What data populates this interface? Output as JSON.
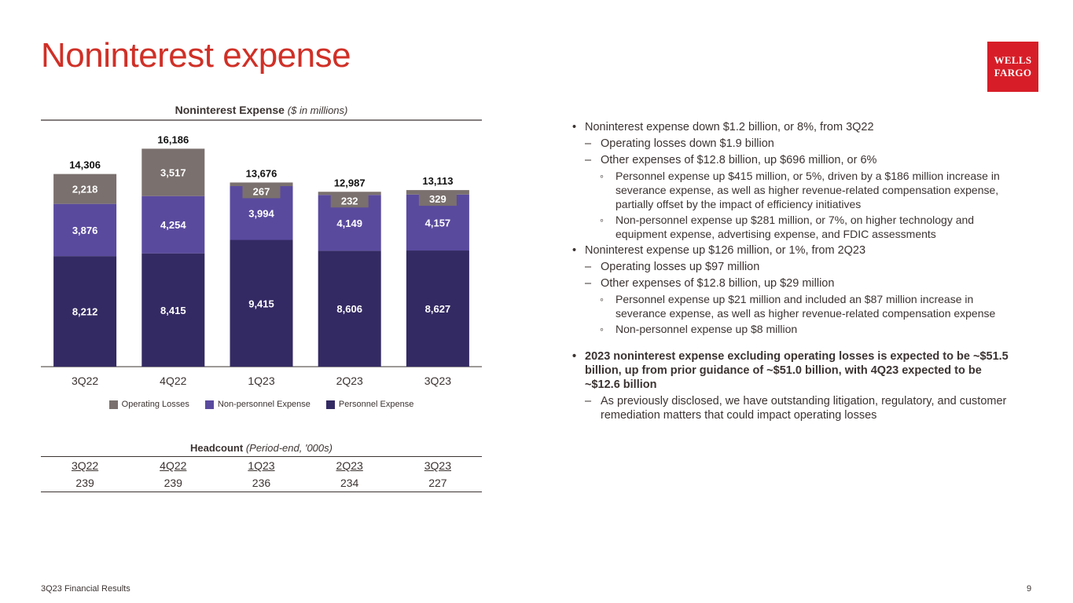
{
  "page": {
    "title": "Noninterest expense",
    "logo_line1": "WELLS",
    "logo_line2": "FARGO",
    "footer": "3Q23 Financial Results",
    "page_number": "9"
  },
  "chart_data": {
    "type": "bar",
    "stacked": true,
    "title": "Noninterest Expense",
    "title_units": "($ in millions)",
    "categories": [
      "3Q22",
      "4Q22",
      "1Q23",
      "2Q23",
      "3Q23"
    ],
    "series": [
      {
        "name": "Personnel Expense",
        "color": "#342a63",
        "values": [
          8212,
          8415,
          9415,
          8606,
          8627
        ],
        "labels": [
          "8,212",
          "8,415",
          "9,415",
          "8,606",
          "8,627"
        ]
      },
      {
        "name": "Non-personnel Expense",
        "color": "#5a4a9e",
        "values": [
          3876,
          4254,
          3994,
          4149,
          4157
        ],
        "labels": [
          "3,876",
          "4,254",
          "3,994",
          "4,149",
          "4,157"
        ]
      },
      {
        "name": "Operating Losses",
        "color": "#7a706e",
        "values": [
          2218,
          3517,
          267,
          232,
          329
        ],
        "labels": [
          "2,218",
          "3,517",
          "267",
          "232",
          "329"
        ]
      }
    ],
    "totals": [
      "14,306",
      "16,186",
      "13,676",
      "12,987",
      "13,113"
    ],
    "legend": [
      "Operating Losses",
      "Non-personnel Expense",
      "Personnel Expense"
    ],
    "ylim": [
      0,
      16500
    ]
  },
  "headcount": {
    "title": "Headcount",
    "subtitle": "(Period-end, '000s)",
    "periods": [
      "3Q22",
      "4Q22",
      "1Q23",
      "2Q23",
      "3Q23"
    ],
    "values": [
      "239",
      "239",
      "236",
      "234",
      "227"
    ]
  },
  "bullets": [
    {
      "level": 1,
      "bold": false,
      "text": "Noninterest expense down $1.2 billion, or 8%, from 3Q22"
    },
    {
      "level": 2,
      "bold": false,
      "text": "Operating losses down $1.9 billion"
    },
    {
      "level": 2,
      "bold": false,
      "text": "Other expenses of $12.8 billion, up $696 million, or 6%"
    },
    {
      "level": 3,
      "bold": false,
      "text": "Personnel expense up $415 million, or 5%, driven by a $186 million increase in severance expense, as well as higher revenue-related compensation expense, partially offset by the impact of efficiency initiatives"
    },
    {
      "level": 3,
      "bold": false,
      "text": "Non-personnel expense up $281 million, or 7%, on higher technology and equipment expense, advertising expense, and FDIC assessments"
    },
    {
      "level": 1,
      "bold": false,
      "text": "Noninterest expense up $126 million, or 1%, from 2Q23"
    },
    {
      "level": 2,
      "bold": false,
      "text": "Operating losses up $97 million"
    },
    {
      "level": 2,
      "bold": false,
      "text": "Other expenses of $12.8 billion, up $29 million"
    },
    {
      "level": 3,
      "bold": false,
      "text": "Personnel expense up $21 million and included an $87 million increase in severance expense, as well as higher revenue-related compensation expense"
    },
    {
      "level": 3,
      "bold": false,
      "text": "Non-personnel expense up $8 million"
    },
    {
      "level": 1,
      "bold": true,
      "gap": true,
      "text": "2023 noninterest expense excluding operating losses is expected to be ~$51.5 billion, up from prior guidance of ~$51.0 billion, with 4Q23 expected to be ~$12.6 billion"
    },
    {
      "level": 2,
      "bold": false,
      "text": "As previously disclosed, we have outstanding litigation, regulatory, and customer remediation matters that could impact operating losses"
    }
  ]
}
